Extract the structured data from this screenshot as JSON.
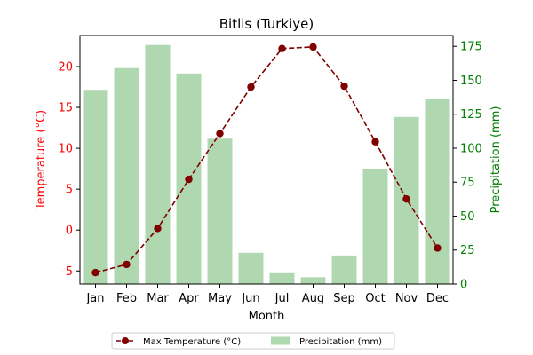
{
  "chart_data": {
    "type": "bar+line",
    "title": "Bitlis (Turkiye)",
    "xlabel": "Month",
    "categories": [
      "Jan",
      "Feb",
      "Mar",
      "Apr",
      "May",
      "Jun",
      "Jul",
      "Aug",
      "Sep",
      "Oct",
      "Nov",
      "Dec"
    ],
    "y_left": {
      "label": "Temperature (°C)",
      "lim": [
        -6.6,
        23.8
      ],
      "ticks": [
        -5,
        0,
        5,
        10,
        15,
        20
      ],
      "color": "#ff0000"
    },
    "y_right": {
      "label": "Precipitation (mm)",
      "lim": [
        0,
        183
      ],
      "ticks": [
        0,
        25,
        50,
        75,
        100,
        125,
        150,
        175
      ],
      "color": "#008000"
    },
    "series": [
      {
        "name": "Max Temperature (°C)",
        "kind": "line",
        "axis": "left",
        "color": "#800000",
        "style": "dashed-with-circle-markers",
        "values": [
          -5.2,
          -4.2,
          0.2,
          6.2,
          11.8,
          17.5,
          22.2,
          22.4,
          17.6,
          10.8,
          3.8,
          -2.2
        ]
      },
      {
        "name": "Precipitation (mm)",
        "kind": "bar",
        "axis": "right",
        "color": "#b0d8b0",
        "values": [
          143,
          159,
          176,
          155,
          107,
          23,
          8,
          5,
          21,
          85,
          123,
          136
        ]
      }
    ],
    "legend_placement": "bottom-center",
    "grid": false
  }
}
